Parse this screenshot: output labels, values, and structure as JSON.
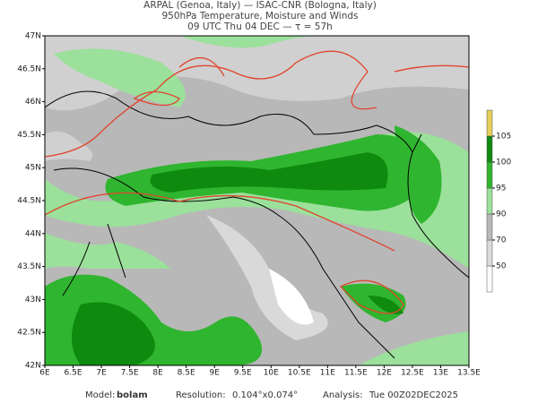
{
  "header": {
    "line1": "ARPAL (Genoa, Italy)  —  ISAC-CNR (Bologna, Italy)",
    "line2": "950hPa Temperature, Moisture and Winds",
    "line3": "09 UTC Thu 04 DEC  —  τ = 57h"
  },
  "map": {
    "lon_ticks": [
      {
        "value": 6,
        "label": "6E"
      },
      {
        "value": 6.5,
        "label": "6.5E"
      },
      {
        "value": 7,
        "label": "7E"
      },
      {
        "value": 7.5,
        "label": "7.5E"
      },
      {
        "value": 8,
        "label": "8E"
      },
      {
        "value": 8.5,
        "label": "8.5E"
      },
      {
        "value": 9,
        "label": "9E"
      },
      {
        "value": 9.5,
        "label": "9.5E"
      },
      {
        "value": 10,
        "label": "10E"
      },
      {
        "value": 10.5,
        "label": "10.5E"
      },
      {
        "value": 11,
        "label": "11E"
      },
      {
        "value": 11.5,
        "label": "11.5E"
      },
      {
        "value": 12,
        "label": "12E"
      },
      {
        "value": 12.5,
        "label": "12.5E"
      },
      {
        "value": 13,
        "label": "13E"
      },
      {
        "value": 13.5,
        "label": "13.5E"
      }
    ],
    "lat_ticks": [
      {
        "value": 42,
        "label": "42N"
      },
      {
        "value": 42.5,
        "label": "42.5N"
      },
      {
        "value": 43,
        "label": "43N"
      },
      {
        "value": 43.5,
        "label": "43.5N"
      },
      {
        "value": 44,
        "label": "44N"
      },
      {
        "value": 44.5,
        "label": "44.5N"
      },
      {
        "value": 45,
        "label": "45N"
      },
      {
        "value": 45.5,
        "label": "45.5N"
      },
      {
        "value": 46,
        "label": "46N"
      },
      {
        "value": 46.5,
        "label": "46.5N"
      },
      {
        "value": 47,
        "label": "47N"
      }
    ]
  },
  "colorbar": {
    "levels": [
      50,
      70,
      90,
      95,
      100,
      105
    ],
    "colors": [
      "#ffffff",
      "#d9d9d9",
      "#b8b8b8",
      "#9be09b",
      "#2fb52f",
      "#0e8a0e",
      "#e3cf5a"
    ]
  },
  "footer": {
    "model_label": "Model:",
    "model": "bolam",
    "resolution_label": "Resolution:",
    "resolution": "0.104°x0.074°",
    "analysis_label": "Analysis:",
    "analysis": "Tue 00Z02DEC2025"
  }
}
